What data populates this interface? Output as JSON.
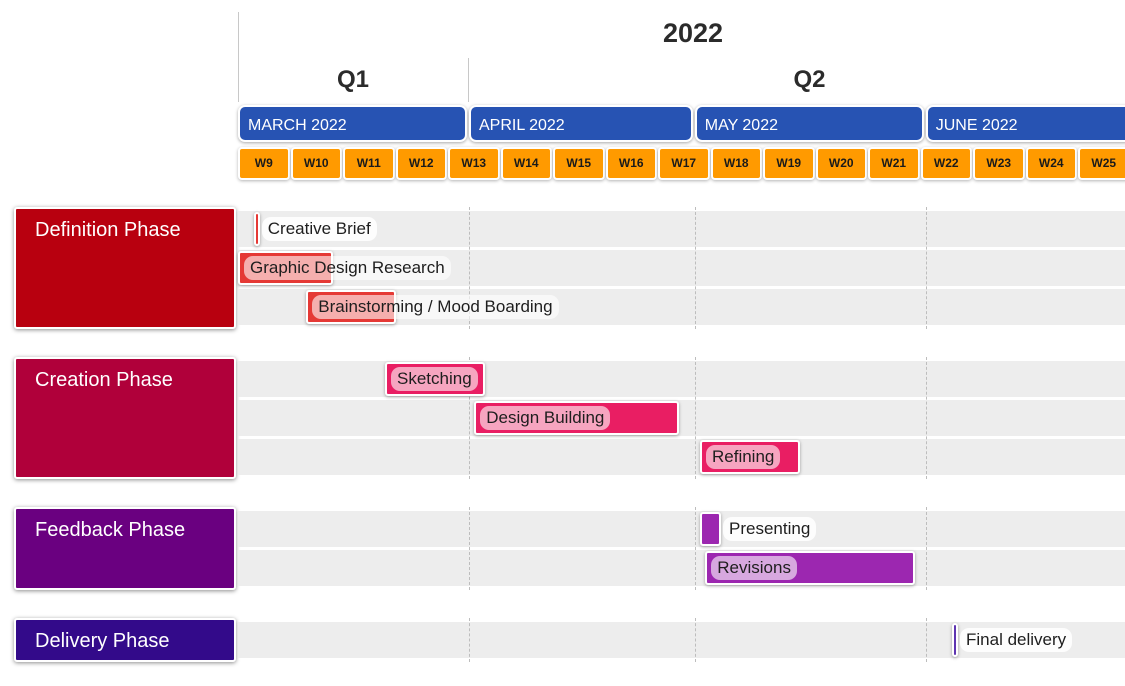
{
  "chart_data": {
    "type": "gantt",
    "year": "2022",
    "quarters": [
      "Q1",
      "Q2"
    ],
    "months": [
      "MARCH 2022",
      "APRIL 2022",
      "MAY 2022",
      "JUNE 2022"
    ],
    "weeks": [
      "W9",
      "W10",
      "W11",
      "W12",
      "W13",
      "W14",
      "W15",
      "W16",
      "W17",
      "W18",
      "W19",
      "W20",
      "W21",
      "W22",
      "W23",
      "W24",
      "W25"
    ],
    "phases": [
      {
        "name": "Definition Phase",
        "color": "#b8000f",
        "light": "#f29a9a",
        "bar": "#e53935",
        "tasks": [
          {
            "name": "Creative Brief",
            "start": 9.3,
            "end": 9.4
          },
          {
            "name": "Graphic Design Research",
            "start": 9.0,
            "end": 10.8
          },
          {
            "name": "Brainstorming / Mood Boarding",
            "start": 10.3,
            "end": 12.0
          }
        ]
      },
      {
        "name": "Creation Phase",
        "color": "#b0003a",
        "light": "#f7b3c9",
        "bar": "#e91e63",
        "tasks": [
          {
            "name": "Sketching",
            "start": 11.8,
            "end": 13.7
          },
          {
            "name": "Design Building",
            "start": 13.5,
            "end": 17.4
          },
          {
            "name": "Refining",
            "start": 17.8,
            "end": 19.7
          }
        ]
      },
      {
        "name": "Feedback Phase",
        "color": "#6a0080",
        "light": "#e2c4ec",
        "bar": "#9c27b0",
        "tasks": [
          {
            "name": "Presenting",
            "start": 17.8,
            "end": 18.2
          },
          {
            "name": "Revisions",
            "start": 17.9,
            "end": 21.9
          }
        ]
      },
      {
        "name": "Delivery Phase",
        "color": "#330a8a",
        "light": "#d9cdee",
        "bar": "#5e35b1",
        "tasks": [
          {
            "name": "Final delivery",
            "start": 22.6,
            "end": 22.7
          }
        ]
      }
    ]
  }
}
